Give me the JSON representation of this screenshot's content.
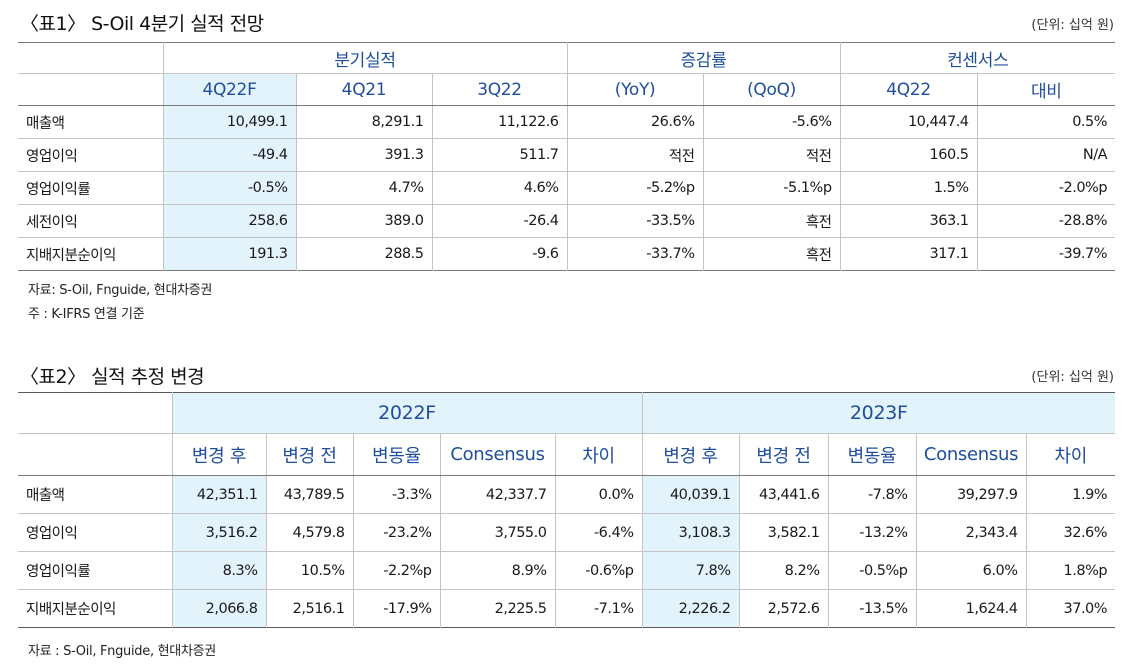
{
  "table1": {
    "title": "〈표1〉 S-Oil 4분기 실적 전망",
    "unit": "(단위: 십억 원)",
    "groups": [
      "분기실적",
      "증감률",
      "컨센서스"
    ],
    "subheaders": [
      "4Q22F",
      "4Q21",
      "3Q22",
      "(YoY)",
      "(QoQ)",
      "4Q22",
      "대비"
    ],
    "rows": [
      {
        "label": "매출액",
        "values": [
          "10,499.1",
          "8,291.1",
          "11,122.6",
          "26.6%",
          "-5.6%",
          "10,447.4",
          "0.5%"
        ]
      },
      {
        "label": "영업이익",
        "values": [
          "-49.4",
          "391.3",
          "511.7",
          "적전",
          "적전",
          "160.5",
          "N/A"
        ]
      },
      {
        "label": "영업이익률",
        "values": [
          "-0.5%",
          "4.7%",
          "4.6%",
          "-5.2%p",
          "-5.1%p",
          "1.5%",
          "-2.0%p"
        ]
      },
      {
        "label": "세전이익",
        "values": [
          "258.6",
          "389.0",
          "-26.4",
          "-33.5%",
          "흑전",
          "363.1",
          "-28.8%"
        ]
      },
      {
        "label": "지배지분순이익",
        "values": [
          "191.3",
          "288.5",
          "-9.6",
          "-33.7%",
          "흑전",
          "317.1",
          "-39.7%"
        ]
      }
    ],
    "notes": [
      "자료: S-Oil, Fnguide, 현대차증권",
      "주 : K-IFRS 연결 기준"
    ]
  },
  "table2": {
    "title": "〈표2〉 실적 추정 변경",
    "unit": "(단위: 십억 원)",
    "groups": [
      "2022F",
      "2023F"
    ],
    "subheaders": [
      "변경 후",
      "변경 전",
      "변동율",
      "Consensus",
      "차이",
      "변경 후",
      "변경 전",
      "변동율",
      "Consensus",
      "차이"
    ],
    "rows": [
      {
        "label": "매출액",
        "values": [
          "42,351.1",
          "43,789.5",
          "-3.3%",
          "42,337.7",
          "0.0%",
          "40,039.1",
          "43,441.6",
          "-7.8%",
          "39,297.9",
          "1.9%"
        ]
      },
      {
        "label": "영업이익",
        "values": [
          "3,516.2",
          "4,579.8",
          "-23.2%",
          "3,755.0",
          "-6.4%",
          "3,108.3",
          "3,582.1",
          "-13.2%",
          "2,343.4",
          "32.6%"
        ]
      },
      {
        "label": "영업이익률",
        "values": [
          "8.3%",
          "10.5%",
          "-2.2%p",
          "8.9%",
          "-0.6%p",
          "7.8%",
          "8.2%",
          "-0.5%p",
          "6.0%",
          "1.8%p"
        ]
      },
      {
        "label": "지배지분순이익",
        "values": [
          "2,066.8",
          "2,516.1",
          "-17.9%",
          "2,225.5",
          "-7.1%",
          "2,226.2",
          "2,572.6",
          "-13.5%",
          "1,624.4",
          "37.0%"
        ]
      }
    ],
    "notes": [
      "자료 : S-Oil, Fnguide, 현대차증권"
    ]
  }
}
